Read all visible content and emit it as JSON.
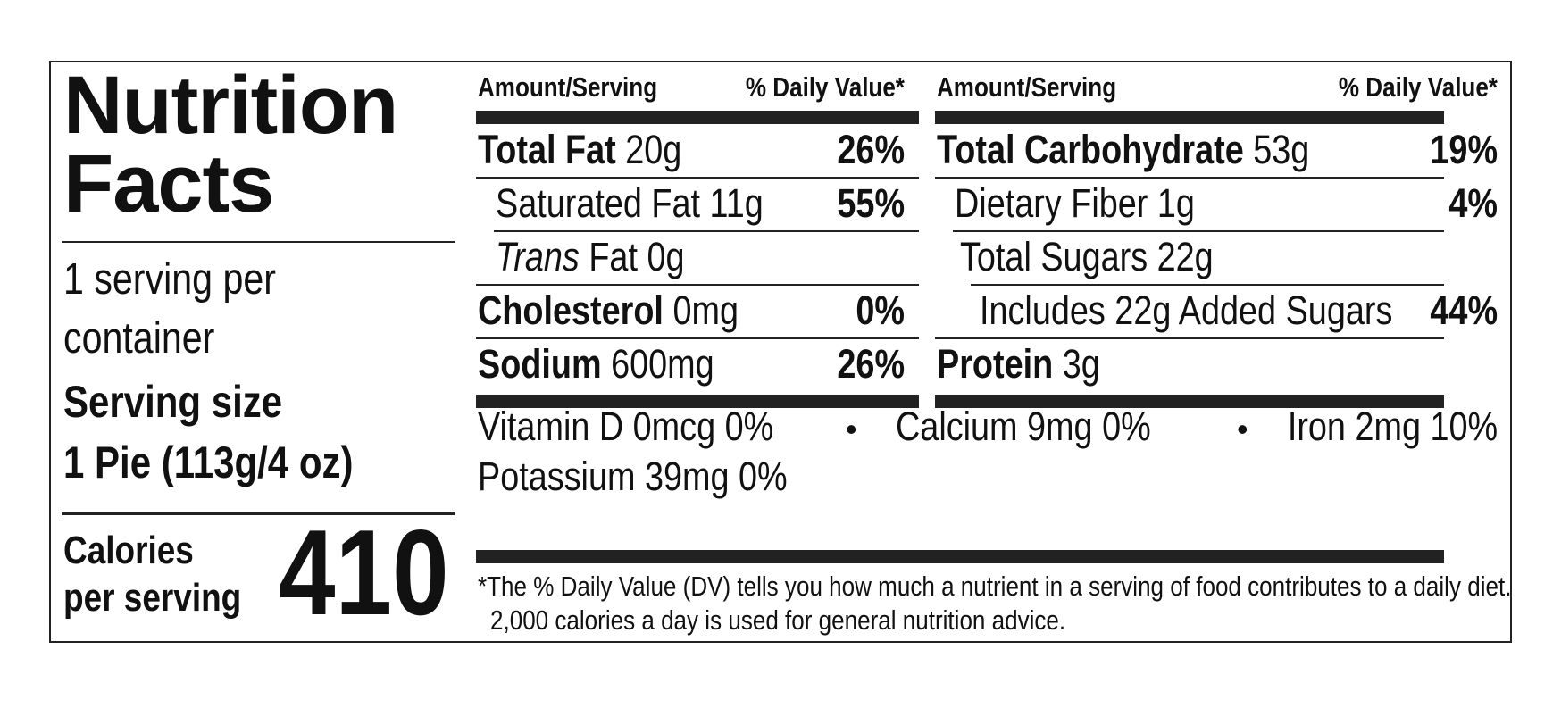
{
  "title_line1": "Nutrition",
  "title_line2": "Facts",
  "servings_line1": "1 serving per",
  "servings_line2": "container",
  "serving_size_label": "Serving size",
  "serving_size_value": "1 Pie (113g/4 oz)",
  "calories_label_line1": "Calories",
  "calories_label_line2": "per serving",
  "calories_value": "410",
  "header": {
    "amount": "Amount/Serving",
    "dv": "% Daily Value*"
  },
  "left_rows": [
    {
      "name": "Total Fat",
      "amount": "20g",
      "dv": "26%"
    },
    {
      "name": "Saturated Fat 11g",
      "dv": "55%"
    },
    {
      "name_italic": "Trans",
      "name": "Fat 0g"
    },
    {
      "name": "Cholesterol",
      "amount": "0mg",
      "dv": "0%"
    },
    {
      "name": "Sodium",
      "amount": "600mg",
      "dv": "26%"
    }
  ],
  "right_rows": [
    {
      "name": "Total Carbohydrate",
      "amount": "53g",
      "dv": "19%"
    },
    {
      "name": "Dietary Fiber 1g",
      "dv": "4%"
    },
    {
      "name": "Total Sugars 22g"
    },
    {
      "name": "Includes 22g Added Sugars",
      "dv": "44%"
    },
    {
      "name": "Protein",
      "amount": "3g"
    }
  ],
  "vitamins": {
    "vitamin_d": "Vitamin D 0mcg 0%",
    "calcium": "Calcium 9mg 0%",
    "iron": "Iron 2mg 10%",
    "potassium": "Potassium 39mg 0%",
    "separator": "•"
  },
  "footnote": {
    "line1": "*The % Daily Value (DV) tells you how much a nutrient in a serving of food contributes to a daily diet.",
    "line2": "2,000 calories a day is used for general nutrition advice."
  }
}
